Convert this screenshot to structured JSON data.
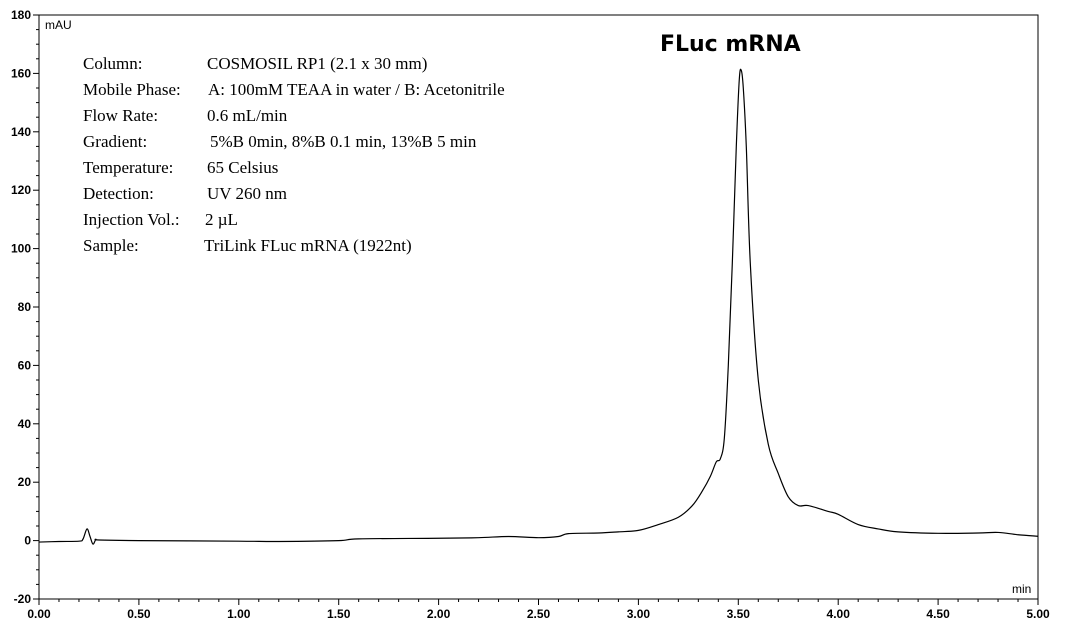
{
  "chart_data": {
    "type": "line",
    "y_unit": "mAU",
    "x_unit": "min",
    "xlim": [
      0.0,
      5.0
    ],
    "ylim": [
      -20,
      180
    ],
    "x_ticks": [
      "0.00",
      "0.50",
      "1.00",
      "1.50",
      "2.00",
      "2.50",
      "3.00",
      "3.50",
      "4.00",
      "4.50",
      "5.00"
    ],
    "y_ticks": [
      "-20",
      "0",
      "20",
      "40",
      "60",
      "80",
      "100",
      "120",
      "140",
      "160",
      "180"
    ],
    "grid": false,
    "annotations": [
      {
        "text": "FLuc mRNA",
        "x": 3.51,
        "y": 161
      }
    ],
    "info": [
      {
        "label": "Column:",
        "value": "COSMOSIL RP1 (2.1 x 30 mm)"
      },
      {
        "label": "Mobile Phase:",
        "value": "A: 100mM TEAA in water / B: Acetonitrile"
      },
      {
        "label": "Flow Rate:",
        "value": "0.6 mL/min"
      },
      {
        "label": "Gradient:",
        "value": "5%B 0min, 8%B 0.1 min, 13%B 5 min"
      },
      {
        "label": "Temperature:",
        "value": "65 Celsius"
      },
      {
        "label": "Detection:",
        "value": "UV 260 nm"
      },
      {
        "label": "Injection Vol.:",
        "value": "2 µL"
      },
      {
        "label": "Sample:",
        "value": "TriLink FLuc mRNA (1922nt)"
      }
    ],
    "series": [
      {
        "color": "#000000",
        "points": [
          [
            0.0,
            -0.5
          ],
          [
            0.1,
            -0.3
          ],
          [
            0.2,
            -0.2
          ],
          [
            0.22,
            0.5
          ],
          [
            0.24,
            4.0
          ],
          [
            0.255,
            1.5
          ],
          [
            0.27,
            -1.2
          ],
          [
            0.285,
            0.4
          ],
          [
            0.3,
            0.2
          ],
          [
            0.5,
            0.0
          ],
          [
            1.0,
            -0.2
          ],
          [
            1.2,
            -0.3
          ],
          [
            1.5,
            0.0
          ],
          [
            1.6,
            0.6
          ],
          [
            2.0,
            0.8
          ],
          [
            2.2,
            1.0
          ],
          [
            2.35,
            1.4
          ],
          [
            2.5,
            1.0
          ],
          [
            2.6,
            1.4
          ],
          [
            2.65,
            2.4
          ],
          [
            2.8,
            2.6
          ],
          [
            2.9,
            3.0
          ],
          [
            3.0,
            3.5
          ],
          [
            3.1,
            5.5
          ],
          [
            3.2,
            8.0
          ],
          [
            3.27,
            12.0
          ],
          [
            3.32,
            17.0
          ],
          [
            3.36,
            22.0
          ],
          [
            3.39,
            27.0
          ],
          [
            3.41,
            28.0
          ],
          [
            3.43,
            35.0
          ],
          [
            3.45,
            60.0
          ],
          [
            3.47,
            95.0
          ],
          [
            3.49,
            135.0
          ],
          [
            3.505,
            158.0
          ],
          [
            3.515,
            161.0
          ],
          [
            3.525,
            155.0
          ],
          [
            3.54,
            135.0
          ],
          [
            3.56,
            95.0
          ],
          [
            3.6,
            55.0
          ],
          [
            3.65,
            33.0
          ],
          [
            3.7,
            23.0
          ],
          [
            3.75,
            15.0
          ],
          [
            3.8,
            12.0
          ],
          [
            3.85,
            12.0
          ],
          [
            3.95,
            10.0
          ],
          [
            4.0,
            9.0
          ],
          [
            4.1,
            5.5
          ],
          [
            4.2,
            4.0
          ],
          [
            4.3,
            3.0
          ],
          [
            4.5,
            2.5
          ],
          [
            4.7,
            2.6
          ],
          [
            4.8,
            2.8
          ],
          [
            4.9,
            2.0
          ],
          [
            5.0,
            1.5
          ]
        ]
      }
    ]
  }
}
